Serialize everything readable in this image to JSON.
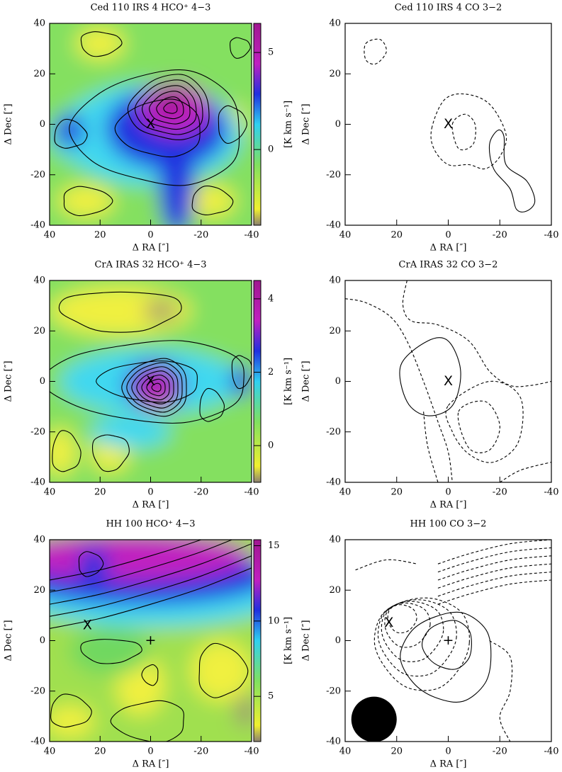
{
  "chart_data": [
    {
      "type": "map",
      "title": "Ced 110 IRS 4 HCO⁺ 4−3",
      "xlabel": "Δ RA [″]",
      "ylabel": "Δ Dec [″]",
      "xlim": [
        40,
        -40
      ],
      "ylim": [
        -40,
        40
      ],
      "xticks": [
        40,
        20,
        0,
        -20,
        -40
      ],
      "yticks": [
        -40,
        -20,
        0,
        20,
        40
      ],
      "colorbar": {
        "label": "[K km s⁻¹]",
        "lim": [
          -3.9,
          6.5
        ],
        "ticks": [
          0,
          5
        ]
      },
      "annotations": [
        {
          "text": "X",
          "x": 0,
          "y": 0
        }
      ]
    },
    {
      "type": "contour",
      "title": "Ced 110 IRS 4 CO 3−2",
      "xlabel": "Δ RA [″]",
      "ylabel": "Δ Dec [″]",
      "xlim": [
        40,
        -40
      ],
      "ylim": [
        -40,
        40
      ],
      "xticks": [
        40,
        20,
        0,
        -20,
        -40
      ],
      "yticks": [
        -40,
        -20,
        0,
        20,
        40
      ],
      "annotations": [
        {
          "text": "X",
          "x": 0,
          "y": 0
        }
      ]
    },
    {
      "type": "map",
      "title": "CrA IRAS 32 HCO⁺ 4−3",
      "xlabel": "Δ RA [″]",
      "ylabel": "Δ Dec [″]",
      "xlim": [
        40,
        -40
      ],
      "ylim": [
        -40,
        40
      ],
      "xticks": [
        40,
        20,
        0,
        -20,
        -40
      ],
      "yticks": [
        -40,
        -20,
        0,
        20,
        40
      ],
      "colorbar": {
        "label": "[K km s⁻¹]",
        "lim": [
          -1,
          4.5
        ],
        "ticks": [
          0,
          2,
          4
        ]
      },
      "annotations": [
        {
          "text": "X",
          "x": 0,
          "y": 0
        }
      ]
    },
    {
      "type": "contour",
      "title": "CrA IRAS 32 CO 3−2",
      "xlabel": "Δ RA [″]",
      "ylabel": "Δ Dec [″]",
      "xlim": [
        40,
        -40
      ],
      "ylim": [
        -40,
        40
      ],
      "xticks": [
        40,
        20,
        0,
        -20,
        -40
      ],
      "yticks": [
        -40,
        -20,
        0,
        20,
        40
      ],
      "annotations": [
        {
          "text": "X",
          "x": 0,
          "y": 0
        }
      ]
    },
    {
      "type": "map",
      "title": "HH 100 HCO⁺ 4−3",
      "xlabel": "Δ RA [″]",
      "ylabel": "Δ Dec [″]",
      "xlim": [
        40,
        -40
      ],
      "ylim": [
        -40,
        40
      ],
      "xticks": [
        40,
        20,
        0,
        -20,
        -40
      ],
      "yticks": [
        -40,
        -20,
        0,
        20,
        40
      ],
      "colorbar": {
        "label": "[K km s⁻¹]",
        "lim": [
          2,
          15.4
        ],
        "ticks": [
          5,
          10,
          15
        ]
      },
      "annotations": [
        {
          "text": "X",
          "x": 25,
          "y": 6
        },
        {
          "text": "+",
          "x": 0,
          "y": 0
        }
      ]
    },
    {
      "type": "contour",
      "title": "HH 100 CO 3−2",
      "xlabel": "Δ RA [″]",
      "ylabel": "Δ Dec [″]",
      "xlim": [
        40,
        -40
      ],
      "ylim": [
        -40,
        40
      ],
      "xticks": [
        40,
        20,
        0,
        -20,
        -40
      ],
      "yticks": [
        -40,
        -20,
        0,
        20,
        40
      ],
      "annotations": [
        {
          "text": "X",
          "x": 23,
          "y": 7
        },
        {
          "text": "+",
          "x": 0,
          "y": 0
        }
      ]
    }
  ]
}
